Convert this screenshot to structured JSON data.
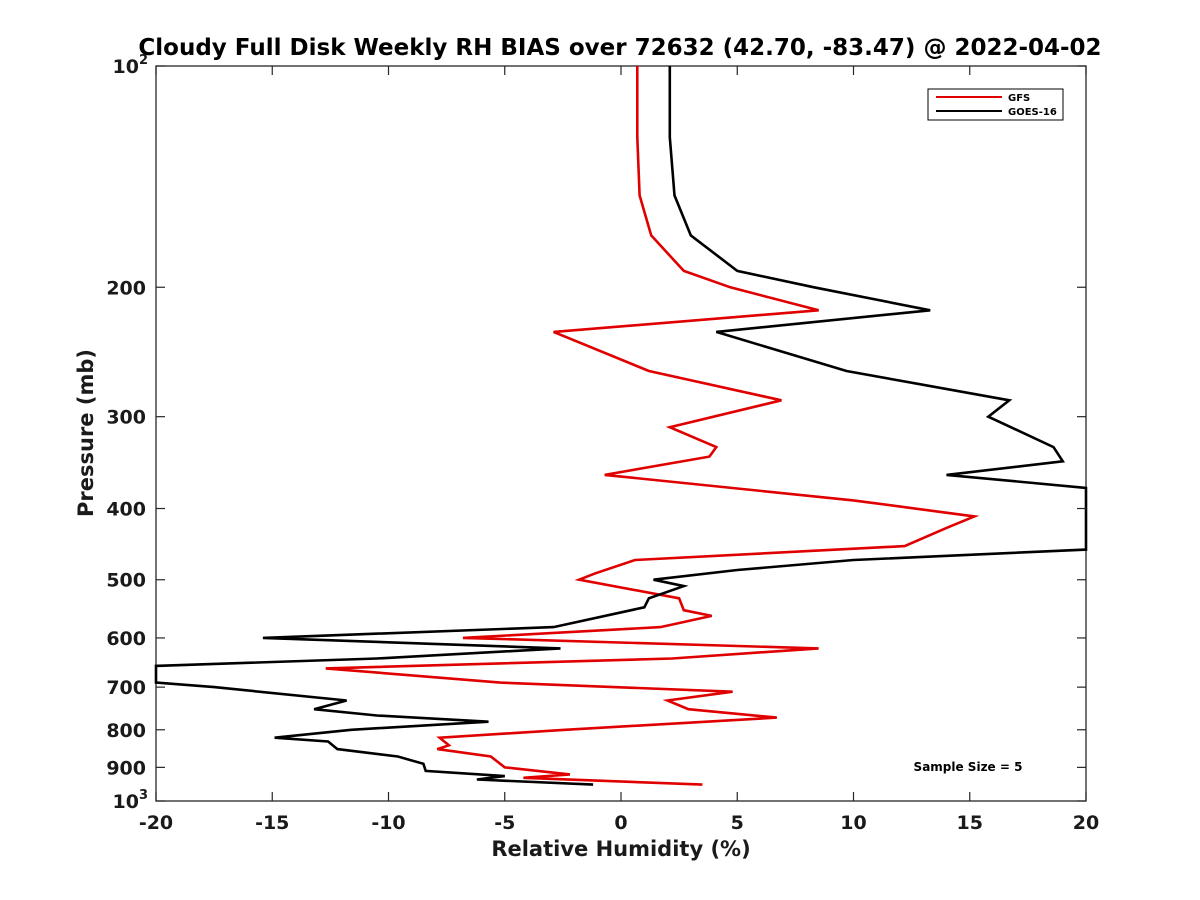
{
  "chart_data": {
    "type": "line",
    "title": "Cloudy Full Disk Weekly RH BIAS over 72632 (42.70, -83.47) @ 2022-04-02",
    "xlabel": "Relative Humidity (%)",
    "ylabel": "Pressure (mb)",
    "xlim": [
      -20,
      20
    ],
    "ylim": [
      1000,
      100
    ],
    "yscale": "log",
    "grid": false,
    "legend_position": "top-right",
    "x_ticks": [
      "-20",
      "-15",
      "-10",
      "-5",
      "0",
      "5",
      "10",
      "15",
      "20"
    ],
    "y_ticks": [
      {
        "value": 100,
        "label": "10",
        "exp": "2"
      },
      {
        "value": 200,
        "label": "200",
        "exp": ""
      },
      {
        "value": 300,
        "label": "300",
        "exp": ""
      },
      {
        "value": 400,
        "label": "400",
        "exp": ""
      },
      {
        "value": 500,
        "label": "500",
        "exp": ""
      },
      {
        "value": 600,
        "label": "600",
        "exp": ""
      },
      {
        "value": 700,
        "label": "700",
        "exp": ""
      },
      {
        "value": 800,
        "label": "800",
        "exp": ""
      },
      {
        "value": 900,
        "label": "900",
        "exp": ""
      },
      {
        "value": 1000,
        "label": "10",
        "exp": "3"
      }
    ],
    "series": [
      {
        "name": "GFS",
        "color": "#e00000",
        "points": [
          [
            0.7,
            100
          ],
          [
            0.7,
            125
          ],
          [
            0.8,
            150
          ],
          [
            1.3,
            170
          ],
          [
            2.7,
            190
          ],
          [
            4.7,
            200
          ],
          [
            8.5,
            215
          ],
          [
            -2.9,
            230
          ],
          [
            1.2,
            260
          ],
          [
            6.9,
            285
          ],
          [
            2.1,
            310
          ],
          [
            4.1,
            330
          ],
          [
            3.8,
            340
          ],
          [
            -0.7,
            360
          ],
          [
            10.0,
            390
          ],
          [
            15.2,
            410
          ],
          [
            14.0,
            425
          ],
          [
            12.2,
            450
          ],
          [
            0.6,
            470
          ],
          [
            -1.1,
            490
          ],
          [
            -1.8,
            500
          ],
          [
            2.5,
            530
          ],
          [
            2.7,
            550
          ],
          [
            3.9,
            560
          ],
          [
            1.7,
            580
          ],
          [
            -6.8,
            600
          ],
          [
            8.5,
            620
          ],
          [
            2.2,
            640
          ],
          [
            -12.7,
            660
          ],
          [
            -5.2,
            690
          ],
          [
            4.8,
            710
          ],
          [
            2.0,
            730
          ],
          [
            2.9,
            750
          ],
          [
            6.7,
            770
          ],
          [
            -2.4,
            800
          ],
          [
            -7.8,
            820
          ],
          [
            -7.4,
            840
          ],
          [
            -7.9,
            850
          ],
          [
            -5.6,
            870
          ],
          [
            -5.0,
            900
          ],
          [
            -2.2,
            920
          ],
          [
            -4.2,
            930
          ],
          [
            3.5,
            950
          ]
        ]
      },
      {
        "name": "GOES-16",
        "color": "#000000",
        "points": [
          [
            2.1,
            100
          ],
          [
            2.1,
            125
          ],
          [
            2.3,
            150
          ],
          [
            3.0,
            170
          ],
          [
            5.0,
            190
          ],
          [
            8.3,
            200
          ],
          [
            13.3,
            215
          ],
          [
            4.1,
            230
          ],
          [
            9.7,
            260
          ],
          [
            16.7,
            285
          ],
          [
            15.8,
            300
          ],
          [
            18.6,
            330
          ],
          [
            19.0,
            345
          ],
          [
            14.0,
            360
          ],
          [
            20.0,
            375
          ],
          [
            20.0,
            455
          ],
          [
            10.0,
            470
          ],
          [
            5.0,
            485
          ],
          [
            1.4,
            500
          ],
          [
            2.7,
            510
          ],
          [
            1.2,
            530
          ],
          [
            1.0,
            545
          ],
          [
            -2.9,
            580
          ],
          [
            -15.4,
            600
          ],
          [
            -2.6,
            620
          ],
          [
            -10.5,
            640
          ],
          [
            -20.0,
            655
          ],
          [
            -20.0,
            690
          ],
          [
            -17.5,
            700
          ],
          [
            -11.8,
            730
          ],
          [
            -13.2,
            750
          ],
          [
            -10.5,
            765
          ],
          [
            -5.7,
            780
          ],
          [
            -11.6,
            800
          ],
          [
            -14.9,
            820
          ],
          [
            -12.6,
            830
          ],
          [
            -12.2,
            850
          ],
          [
            -9.6,
            870
          ],
          [
            -8.5,
            890
          ],
          [
            -8.4,
            910
          ],
          [
            -5.0,
            925
          ],
          [
            -6.2,
            935
          ],
          [
            -1.2,
            950
          ]
        ]
      }
    ],
    "annotation": "Sample Size = 5"
  }
}
